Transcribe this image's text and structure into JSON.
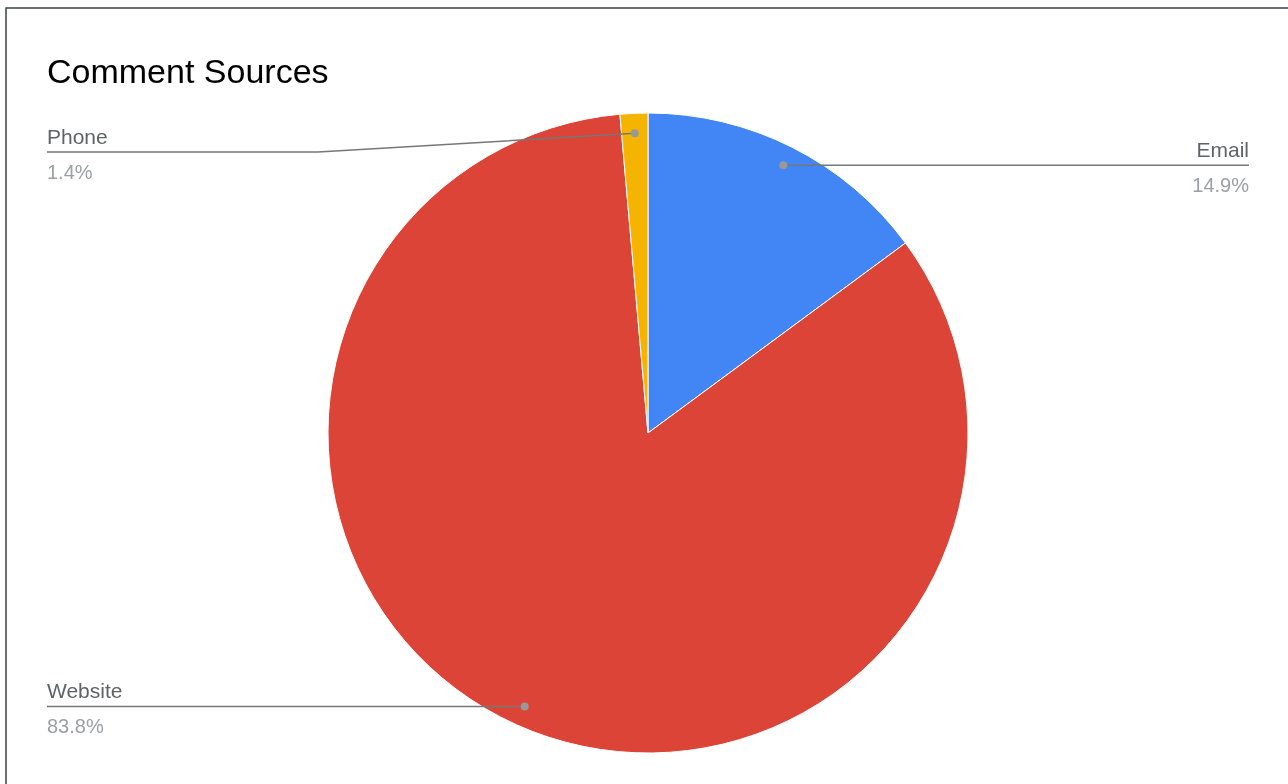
{
  "chart_data": {
    "type": "pie",
    "title": "Comment Sources",
    "categories": [
      "Email",
      "Website",
      "Phone"
    ],
    "values": [
      14.9,
      83.8,
      1.4
    ],
    "colors": [
      "#4285f4",
      "#db4437",
      "#f4b400"
    ],
    "value_labels": [
      "14.9%",
      "83.8%",
      "1.4%"
    ]
  }
}
